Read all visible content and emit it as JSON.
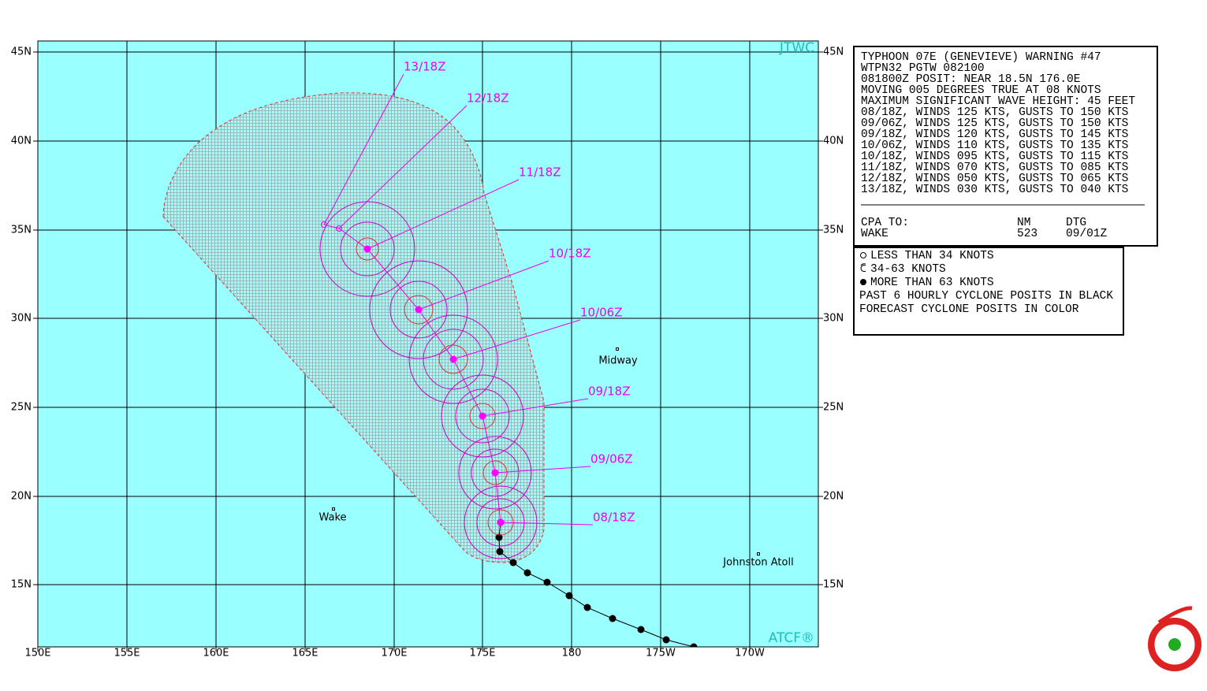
{
  "map": {
    "watermark_top": "JTWC",
    "watermark_bottom": "ATCF®",
    "lat_labels": [
      "45N",
      "40N",
      "35N",
      "30N",
      "25N",
      "20N",
      "15N"
    ],
    "lon_labels": [
      "150E",
      "155E",
      "160E",
      "165E",
      "170E",
      "175E",
      "180",
      "175W",
      "170W"
    ],
    "forecast_labels": [
      "08/18Z",
      "09/06Z",
      "09/18Z",
      "10/06Z",
      "10/18Z",
      "11/18Z",
      "12/18Z",
      "13/18Z"
    ],
    "places": [
      "Midway",
      "Wake",
      "Johnston Atoll"
    ]
  },
  "warning": {
    "lines": [
      "TYPHOON 07E (GENEVIEVE) WARNING #47",
      "WTPN32 PGTW 082100",
      "081800Z POSIT: NEAR 18.5N 176.0E",
      "MOVING 005 DEGREES TRUE AT 08 KNOTS",
      "MAXIMUM SIGNIFICANT WAVE HEIGHT: 45 FEET",
      "08/18Z, WINDS 125 KTS, GUSTS TO 150 KTS",
      "09/06Z, WINDS 125 KTS, GUSTS TO 150 KTS",
      "09/18Z, WINDS 120 KTS, GUSTS TO 145 KTS",
      "10/06Z, WINDS 110 KTS, GUSTS TO 135 KTS",
      "10/18Z, WINDS 095 KTS, GUSTS TO 115 KTS",
      "11/18Z, WINDS 070 KTS, GUSTS TO 085 KTS",
      "12/18Z, WINDS 050 KTS, GUSTS TO 065 KTS",
      "13/18Z, WINDS 030 KTS, GUSTS TO 040 KTS"
    ],
    "cpa": {
      "header": [
        "CPA TO:",
        "NM",
        "DTG"
      ],
      "row": [
        "WAKE",
        "523",
        "09/01Z"
      ]
    }
  },
  "legend": {
    "items": [
      "LESS THAN 34 KNOTS",
      "34-63 KNOTS",
      "MORE THAN 63 KNOTS",
      "PAST 6 HOURLY CYCLONE POSITS IN BLACK",
      "FORECAST CYCLONE POSITS IN COLOR"
    ]
  }
}
